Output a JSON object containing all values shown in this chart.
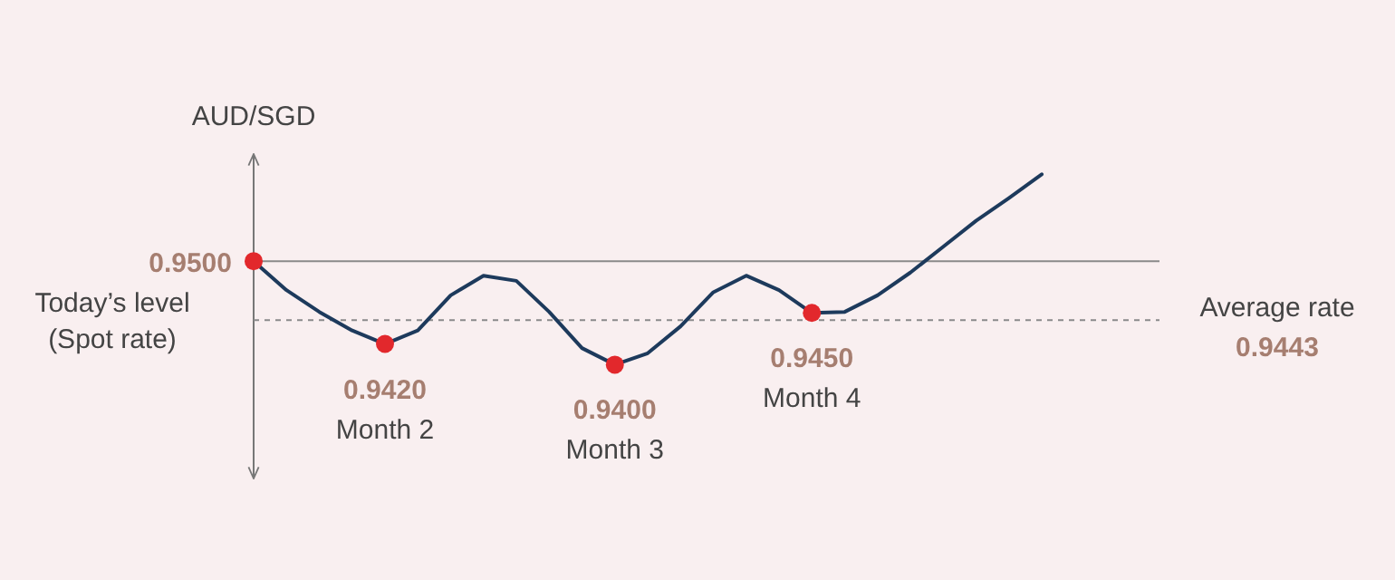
{
  "chart_data": {
    "type": "line",
    "ylabel": "AUD/SGD",
    "categories": [
      null,
      null,
      null,
      null,
      null,
      null,
      null,
      null,
      null,
      null,
      null,
      null,
      null,
      null,
      null,
      null,
      null,
      null,
      null,
      null,
      null,
      null,
      null,
      null,
      null
    ],
    "ylim": [
      0.929,
      0.96
    ],
    "grid": false,
    "series": [
      {
        "color": "#1d3a5c",
        "values": [
          0.95,
          0.9472,
          0.9451,
          0.9433,
          0.942,
          0.9433,
          0.9467,
          0.9486,
          0.9481,
          0.9451,
          0.9416,
          0.94,
          0.9411,
          0.9437,
          0.947,
          0.9486,
          0.9472,
          0.945,
          0.9451,
          0.9467,
          0.9489,
          0.9514,
          0.9539,
          0.9561,
          0.9584
        ],
        "value_labels": [
          "0.9500",
          null,
          null,
          null,
          "0.9420",
          null,
          null,
          null,
          null,
          null,
          null,
          "0.9400",
          null,
          null,
          null,
          null,
          null,
          "0.9450",
          null,
          null,
          null,
          null,
          null,
          null,
          null
        ]
      }
    ],
    "ref_lines": [
      {
        "axis": "y",
        "value": 0.95,
        "color": "#8a8a8a",
        "line_style": "solid"
      },
      {
        "axis": "y",
        "value": 0.9443,
        "label": "Average rate\n0.9443",
        "color": "#8a8a8a",
        "line_style": "dashed"
      }
    ],
    "annotations": [
      "Today’s level\n(Spot rate)",
      "Month 2",
      "Month 3",
      "Month 4"
    ]
  }
}
